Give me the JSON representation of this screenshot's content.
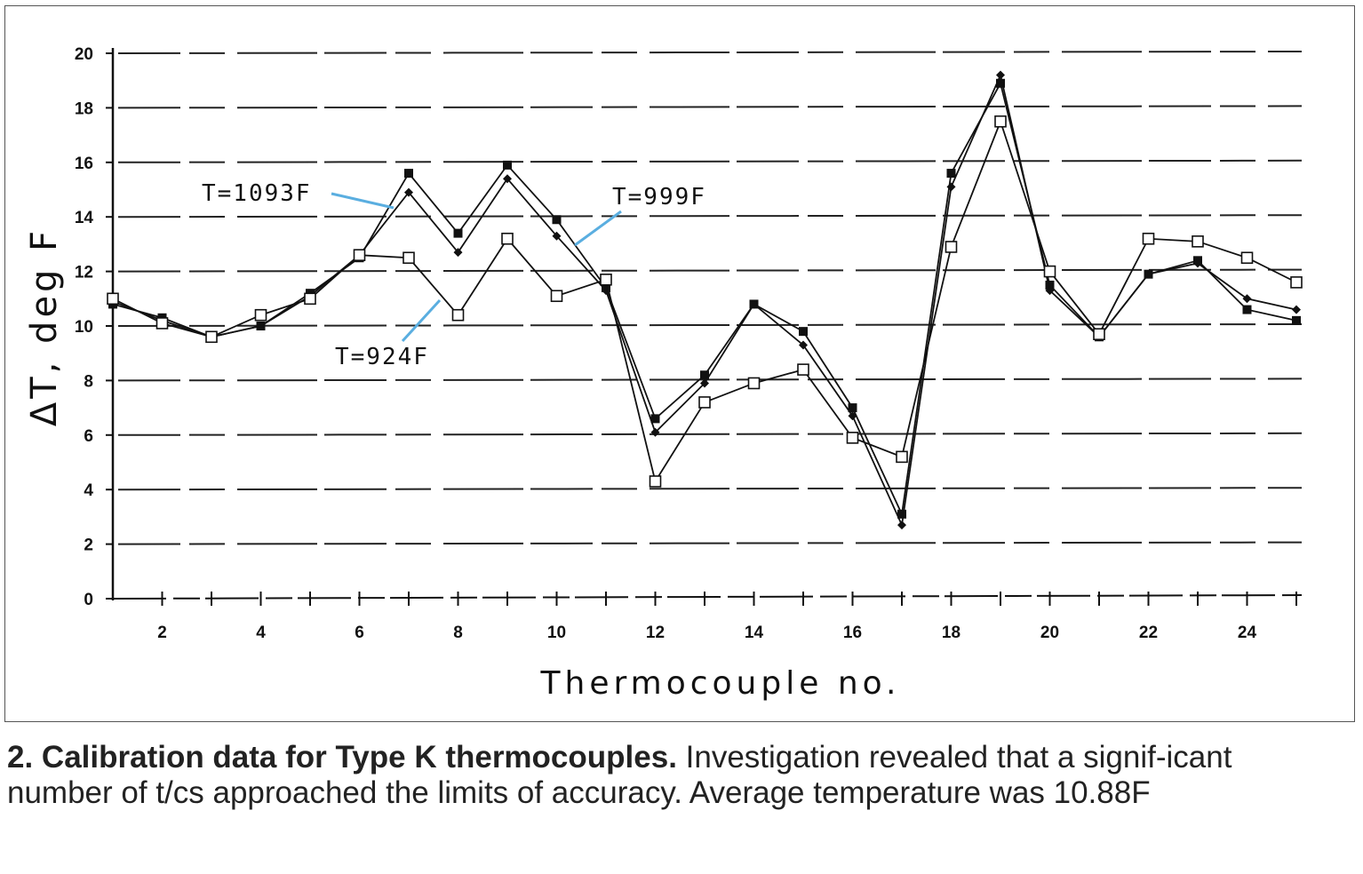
{
  "caption": {
    "bold": "2. Calibration data for Type K thermocouples.",
    "text": " Investigation revealed that a signif-icant number of t/cs approached the limits of accuracy. Average temperature was 10.88F"
  },
  "colors": {
    "annotation_arrow": "#5aaee0",
    "ink": "#111111"
  },
  "chart_data": {
    "type": "line",
    "title": "",
    "xlabel": "Thermocouple no.",
    "ylabel": "ΔT, deg F",
    "xlim": [
      1,
      25
    ],
    "ylim": [
      0,
      20
    ],
    "xticks": [
      "2",
      "4",
      "6",
      "8",
      "10",
      "12",
      "14",
      "16",
      "18",
      "20",
      "22",
      "24"
    ],
    "xtick_values": [
      2,
      4,
      6,
      8,
      10,
      12,
      14,
      16,
      18,
      20,
      22,
      24
    ],
    "yticks": [
      "0",
      "2",
      "4",
      "6",
      "8",
      "10",
      "12",
      "14",
      "16",
      "18",
      "20"
    ],
    "ytick_values": [
      0,
      2,
      4,
      6,
      8,
      10,
      12,
      14,
      16,
      18,
      20
    ],
    "grid": "horizontal dashed",
    "x": [
      1,
      2,
      3,
      4,
      5,
      6,
      7,
      8,
      9,
      10,
      11,
      12,
      13,
      14,
      15,
      16,
      17,
      18,
      19,
      20,
      21,
      22,
      23,
      24,
      25
    ],
    "series": [
      {
        "name": "T=1093F",
        "marker": "filled-square",
        "values": [
          10.8,
          10.3,
          9.6,
          10.0,
          11.2,
          12.5,
          15.6,
          13.4,
          15.9,
          13.9,
          11.4,
          6.6,
          8.2,
          10.8,
          9.8,
          7.0,
          3.1,
          15.6,
          18.9,
          11.5,
          9.6,
          11.9,
          12.4,
          10.6,
          10.2
        ]
      },
      {
        "name": "T=999F",
        "marker": "filled-diamond",
        "values": [
          10.9,
          10.2,
          9.6,
          10.0,
          11.1,
          12.6,
          14.9,
          12.7,
          15.4,
          13.3,
          11.3,
          6.1,
          7.9,
          10.8,
          9.3,
          6.7,
          2.7,
          15.1,
          19.2,
          11.3,
          9.6,
          11.9,
          12.3,
          11.0,
          10.6
        ]
      },
      {
        "name": "T=924F",
        "marker": "open-square",
        "values": [
          11.0,
          10.1,
          9.6,
          10.4,
          11.0,
          12.6,
          12.5,
          10.4,
          13.2,
          11.1,
          11.7,
          4.3,
          7.2,
          7.9,
          8.4,
          5.9,
          5.2,
          12.9,
          17.5,
          12.0,
          9.7,
          13.2,
          13.1,
          12.5,
          11.6
        ]
      }
    ],
    "annotations": [
      {
        "label": "T=1093F",
        "series": "T=1093F"
      },
      {
        "label": "T=999F",
        "series": "T=999F"
      },
      {
        "label": "T=924F",
        "series": "T=924F"
      }
    ]
  }
}
